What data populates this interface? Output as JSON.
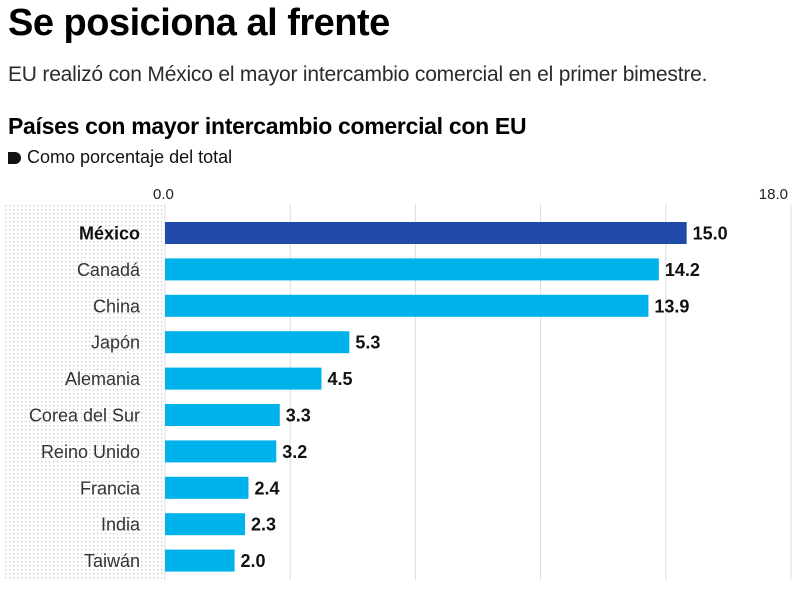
{
  "header": {
    "headline": "Se posiciona al frente",
    "dek": "EU realizó con México el mayor intercambio comercial en el primer bimestre."
  },
  "colors": {
    "highlight_bar": "#1f4aa8",
    "bar": "#00b2ec",
    "grid": "#dcdcdc",
    "dot_pattern": "#c8c8c8"
  },
  "chart_data": {
    "type": "bar",
    "orientation": "horizontal",
    "title": "Países con mayor intercambio comercial con EU",
    "subtitle": "Como porcentaje del total",
    "categories": [
      "México",
      "Canadá",
      "China",
      "Japón",
      "Alemania",
      "Corea del Sur",
      "Reino Unido",
      "Francia",
      "India",
      "Taiwán"
    ],
    "values": [
      15.0,
      14.2,
      13.9,
      5.3,
      4.5,
      3.3,
      3.2,
      2.4,
      2.3,
      2.0
    ],
    "value_labels": [
      "15.0",
      "14.2",
      "13.9",
      "5.3",
      "4.5",
      "3.3",
      "3.2",
      "2.4",
      "2.3",
      "2.0"
    ],
    "highlight_category": "México",
    "xlim": [
      0,
      18
    ],
    "tick_labels": [
      "0.0",
      "18.0"
    ],
    "grid_values": [
      0,
      3.6,
      7.2,
      10.8,
      14.4,
      18
    ]
  }
}
